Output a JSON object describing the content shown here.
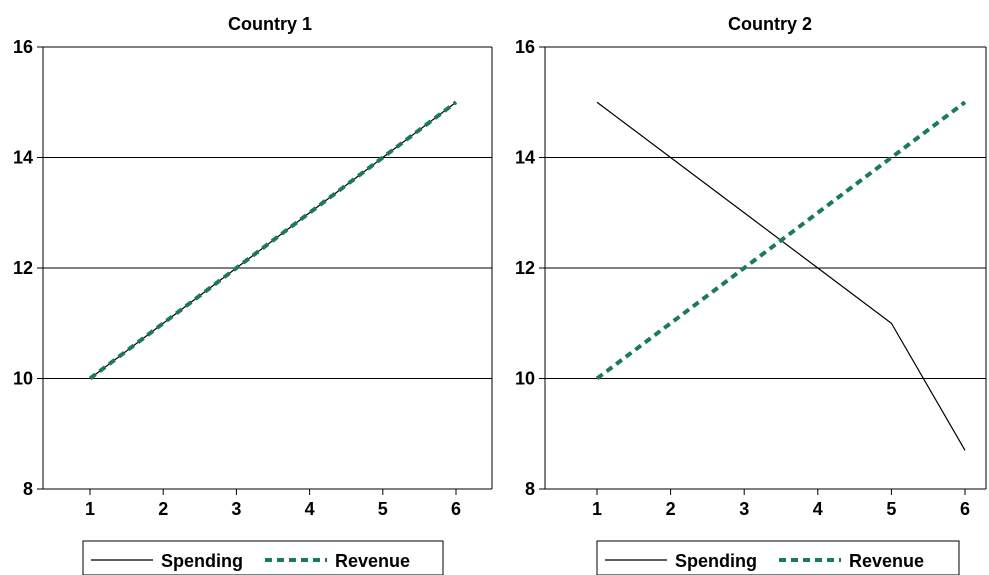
{
  "chart_data": [
    {
      "type": "line",
      "title": "Country 1",
      "xlabel": "",
      "ylabel": "",
      "x": [
        1,
        2,
        3,
        4,
        5,
        6
      ],
      "x_ticks": [
        "1",
        "2",
        "3",
        "4",
        "5",
        "6"
      ],
      "ylim": [
        8,
        16
      ],
      "y_ticks": [
        "8",
        "10",
        "12",
        "14",
        "16"
      ],
      "grid": "horizontal",
      "legend_position": "bottom",
      "series": [
        {
          "name": "Spending",
          "values": [
            10,
            11,
            12,
            13,
            14,
            15
          ],
          "color": "#000000",
          "style": "solid"
        },
        {
          "name": "Revenue",
          "values": [
            10,
            11,
            12,
            13,
            14,
            15
          ],
          "color": "#1a7a5e",
          "style": "dashed"
        }
      ]
    },
    {
      "type": "line",
      "title": "Country 2",
      "xlabel": "",
      "ylabel": "",
      "x": [
        1,
        2,
        3,
        4,
        5,
        6
      ],
      "x_ticks": [
        "1",
        "2",
        "3",
        "4",
        "5",
        "6"
      ],
      "ylim": [
        8,
        16
      ],
      "y_ticks": [
        "8",
        "10",
        "12",
        "14",
        "16"
      ],
      "grid": "horizontal",
      "legend_position": "bottom",
      "series": [
        {
          "name": "Spending",
          "values": [
            15,
            14,
            13,
            12,
            11,
            8.7
          ],
          "color": "#000000",
          "style": "solid"
        },
        {
          "name": "Revenue",
          "values": [
            10,
            11,
            12,
            13,
            14,
            15
          ],
          "color": "#1a7a5e",
          "style": "dashed"
        }
      ]
    }
  ]
}
